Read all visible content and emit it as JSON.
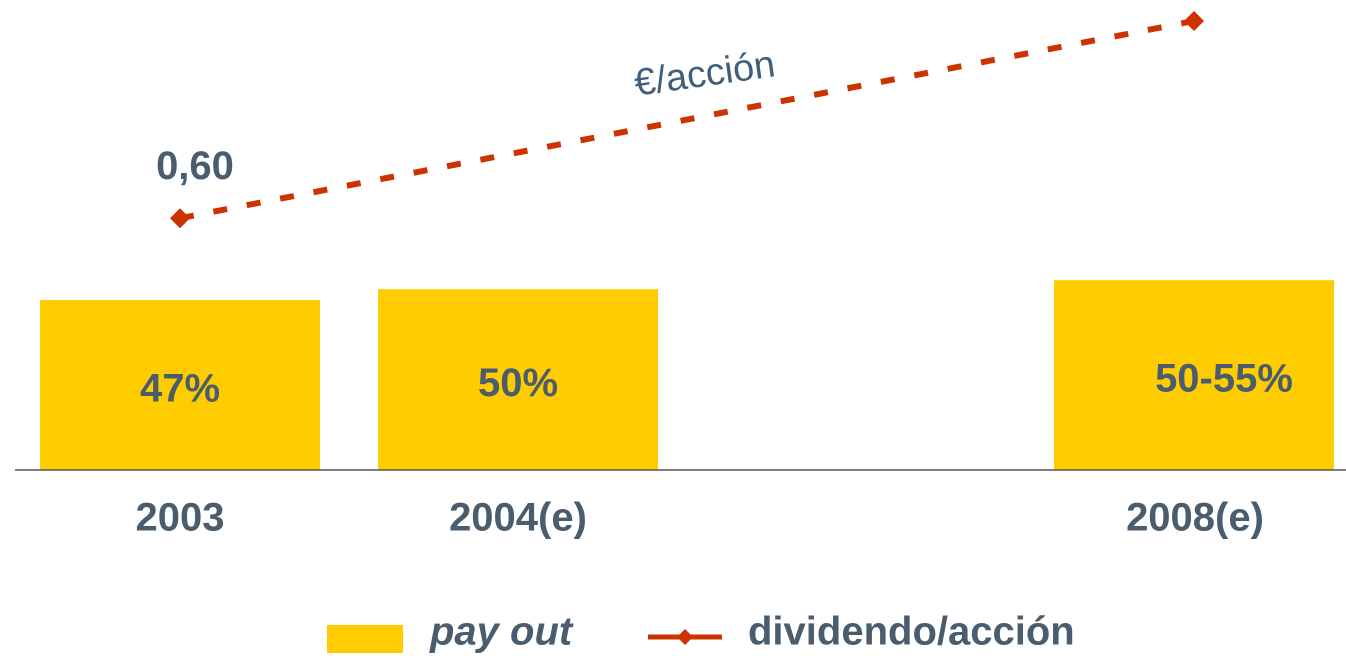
{
  "chart_data": {
    "type": "bar",
    "categories": [
      "2003",
      "2004(e)",
      null,
      "2008(e)"
    ],
    "series": [
      {
        "name": "pay out",
        "type": "bar",
        "color": "#ffcc00",
        "values": [
          47,
          50,
          null,
          52.5
        ],
        "value_labels": [
          "47%",
          "50%",
          null,
          "50-55%"
        ]
      },
      {
        "name": "dividendo/acción",
        "type": "line",
        "axis": "y2",
        "color": "#cc3300",
        "x": [
          "2003",
          "2008(e)"
        ],
        "values": [
          0.6,
          1.07
        ],
        "value_labels": [
          "0,60",
          null
        ]
      }
    ],
    "ylim": [
      0,
      130
    ],
    "y2lim": [
      0,
      1.12
    ],
    "annotations": [
      {
        "text": "€/acción"
      }
    ]
  }
}
